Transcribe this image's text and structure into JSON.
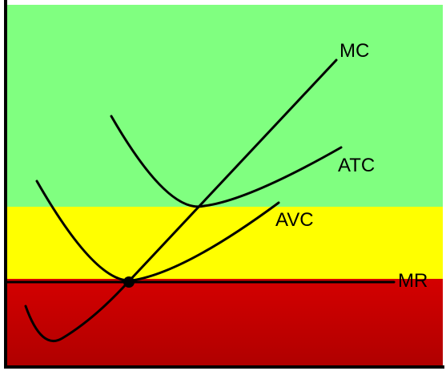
{
  "diagram": {
    "labels": {
      "mc": "MC",
      "atc": "ATC",
      "avc": "AVC",
      "mr": "MR"
    },
    "zones": {
      "top_color": "#80ff80",
      "middle_color": "#ffff00",
      "bottom_color_top": "#d40000",
      "bottom_color_bottom": "#b00000"
    },
    "curve_color": "#000000",
    "point_color": "#000000"
  }
}
